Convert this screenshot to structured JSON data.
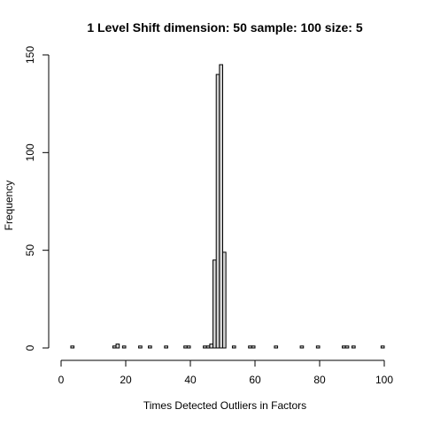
{
  "chart_data": {
    "type": "bar",
    "title": "1 Level Shift dimension: 50 sample: 100 size: 5",
    "xlabel": "Times Detected Outliers in Factors",
    "ylabel": "Frequency",
    "xlim": [
      0,
      100
    ],
    "ylim": [
      0,
      150
    ],
    "xticks": [
      0,
      20,
      40,
      60,
      80,
      100
    ],
    "yticks": [
      0,
      50,
      100,
      150
    ],
    "bin_width": 1,
    "bins": [
      {
        "x0": 3,
        "x1": 4,
        "count": 1
      },
      {
        "x0": 16,
        "x1": 17,
        "count": 1
      },
      {
        "x0": 17,
        "x1": 18,
        "count": 2
      },
      {
        "x0": 19,
        "x1": 20,
        "count": 1
      },
      {
        "x0": 24,
        "x1": 25,
        "count": 1
      },
      {
        "x0": 27,
        "x1": 28,
        "count": 1
      },
      {
        "x0": 32,
        "x1": 33,
        "count": 1
      },
      {
        "x0": 38,
        "x1": 39,
        "count": 1
      },
      {
        "x0": 39,
        "x1": 40,
        "count": 1
      },
      {
        "x0": 44,
        "x1": 45,
        "count": 1
      },
      {
        "x0": 45,
        "x1": 46,
        "count": 1
      },
      {
        "x0": 46,
        "x1": 47,
        "count": 2
      },
      {
        "x0": 47,
        "x1": 48,
        "count": 45
      },
      {
        "x0": 48,
        "x1": 49,
        "count": 140
      },
      {
        "x0": 49,
        "x1": 50,
        "count": 145
      },
      {
        "x0": 50,
        "x1": 51,
        "count": 49
      },
      {
        "x0": 53,
        "x1": 54,
        "count": 1
      },
      {
        "x0": 58,
        "x1": 59,
        "count": 1
      },
      {
        "x0": 59,
        "x1": 60,
        "count": 1
      },
      {
        "x0": 66,
        "x1": 67,
        "count": 1
      },
      {
        "x0": 74,
        "x1": 75,
        "count": 1
      },
      {
        "x0": 79,
        "x1": 80,
        "count": 1
      },
      {
        "x0": 87,
        "x1": 88,
        "count": 1
      },
      {
        "x0": 88,
        "x1": 89,
        "count": 1
      },
      {
        "x0": 90,
        "x1": 91,
        "count": 1
      },
      {
        "x0": 99,
        "x1": 100,
        "count": 1
      }
    ]
  }
}
